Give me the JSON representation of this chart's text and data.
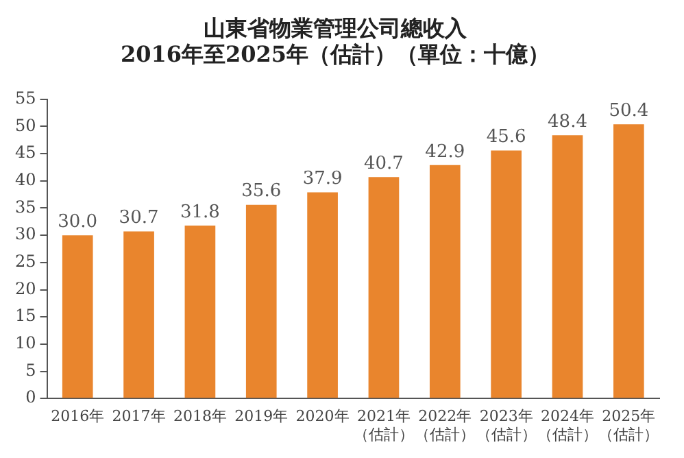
{
  "chart_data": {
    "type": "bar",
    "title": [
      "山東省物業管理公司總收入",
      "2016年至2025年（估計）（單位：十億）"
    ],
    "categories": [
      "2016年",
      "2017年",
      "2018年",
      "2019年",
      "2020年",
      "2021年（估計）",
      "2022年（估計）",
      "2023年（估計）",
      "2024年（估計）",
      "2025年（估計）"
    ],
    "values": [
      30.0,
      30.7,
      31.8,
      35.6,
      37.9,
      40.7,
      42.9,
      45.6,
      48.4,
      50.4
    ],
    "value_labels": [
      "30.0",
      "30.7",
      "31.8",
      "35.6",
      "37.9",
      "40.7",
      "42.9",
      "45.6",
      "48.4",
      "50.4"
    ],
    "color": "#e9852d",
    "ylim": [
      0,
      55
    ],
    "yticks": [
      0,
      5,
      10,
      15,
      20,
      25,
      30,
      35,
      40,
      45,
      50,
      55
    ],
    "grid": false
  }
}
